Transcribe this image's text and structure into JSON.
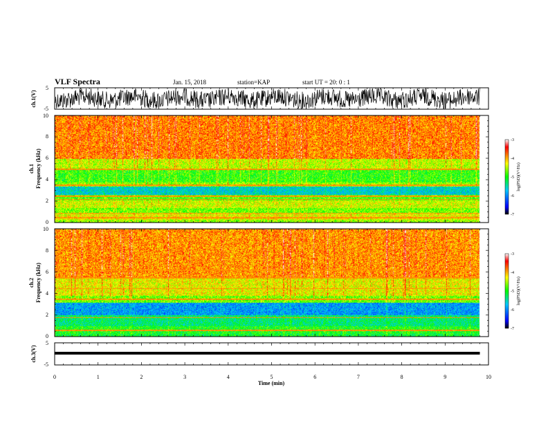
{
  "header": {
    "title": "VLF Spectra",
    "date": "Jan. 15, 2018",
    "station": "station=KAP",
    "start": "start  UT =  20: 0  : 1"
  },
  "chart_data": [
    {
      "type": "line",
      "panel": "ch.1 waveform",
      "ylabel": "ch.1(V)",
      "ylim": [
        -5,
        5
      ],
      "ytick_labels": [
        "5",
        "-5"
      ],
      "xlim": [
        0,
        10
      ],
      "x_data_range": [
        0,
        9.8
      ],
      "color": "#000000"
    },
    {
      "type": "heatmap",
      "panel": "ch.1 spectrogram",
      "ylabel": "ch.1\nFrequency (kHz)",
      "ylim": [
        0,
        10
      ],
      "ytick_labels": [
        "0",
        "2",
        "4",
        "6",
        "8",
        "10"
      ],
      "xlim": [
        0,
        10
      ],
      "x_data_range": [
        0,
        9.8
      ],
      "colorbar": {
        "label": "log(PSD)(V²/Hz)",
        "range": [
          -7,
          -3
        ],
        "tick_labels": [
          "-3",
          "-4",
          "-5",
          "-6",
          "-7"
        ]
      },
      "bands": [
        {
          "from": 0,
          "to": 0.3,
          "level": -4.6
        },
        {
          "from": 0.3,
          "to": 0.9,
          "level": -4.3
        },
        {
          "from": 0.9,
          "to": 1.4,
          "level": -4.7
        },
        {
          "from": 1.4,
          "to": 2.1,
          "level": -4.4
        },
        {
          "from": 2.1,
          "to": 2.6,
          "level": -4.8
        },
        {
          "from": 2.6,
          "to": 3.4,
          "level": -5.6
        },
        {
          "from": 3.4,
          "to": 3.8,
          "level": -4.6
        },
        {
          "from": 3.8,
          "to": 5.0,
          "level": -4.9
        },
        {
          "from": 5.0,
          "to": 6.0,
          "level": -4.45
        },
        {
          "from": 6.0,
          "to": 10.0,
          "level": -3.85
        }
      ],
      "lines_khz": [
        0.5,
        0.9,
        2.2,
        2.5,
        3.5,
        5.0
      ]
    },
    {
      "type": "heatmap",
      "panel": "ch.2 spectrogram",
      "ylabel": "ch.2\nFrequency (kHz)",
      "ylim": [
        0,
        10
      ],
      "ytick_labels": [
        "0",
        "2",
        "4",
        "6",
        "8",
        "10"
      ],
      "xlim": [
        0,
        10
      ],
      "x_data_range": [
        0,
        9.8
      ],
      "colorbar": {
        "label": "log(PSD)(V²/Hz)",
        "range": [
          -7,
          -3
        ],
        "tick_labels": [
          "-3",
          "-4",
          "-5",
          "-6",
          "-7"
        ]
      },
      "bands": [
        {
          "from": 0,
          "to": 0.3,
          "level": -5.1
        },
        {
          "from": 0.3,
          "to": 1.0,
          "level": -5.0
        },
        {
          "from": 1.0,
          "to": 2.0,
          "level": -5.3
        },
        {
          "from": 2.0,
          "to": 3.2,
          "level": -5.9
        },
        {
          "from": 3.2,
          "to": 3.8,
          "level": -4.7
        },
        {
          "from": 3.8,
          "to": 5.5,
          "level": -4.3
        },
        {
          "from": 5.5,
          "to": 10.0,
          "level": -3.9
        }
      ],
      "lines_khz": [
        0.6,
        1.8,
        3.5,
        4.5,
        5.5,
        6.2
      ]
    },
    {
      "type": "line",
      "panel": "ch.3 waveform",
      "ylabel": "ch.3(V)",
      "ylim": [
        -5,
        5
      ],
      "ytick_labels": [
        "5",
        "-5"
      ],
      "xlim": [
        0,
        10
      ],
      "x_data_range": [
        0,
        9.8
      ],
      "constant_value": 0,
      "xlabel": "Time (min)",
      "xtick_labels": [
        "0",
        "1",
        "2",
        "3",
        "4",
        "5",
        "6",
        "7",
        "8",
        "9",
        "10"
      ]
    }
  ]
}
